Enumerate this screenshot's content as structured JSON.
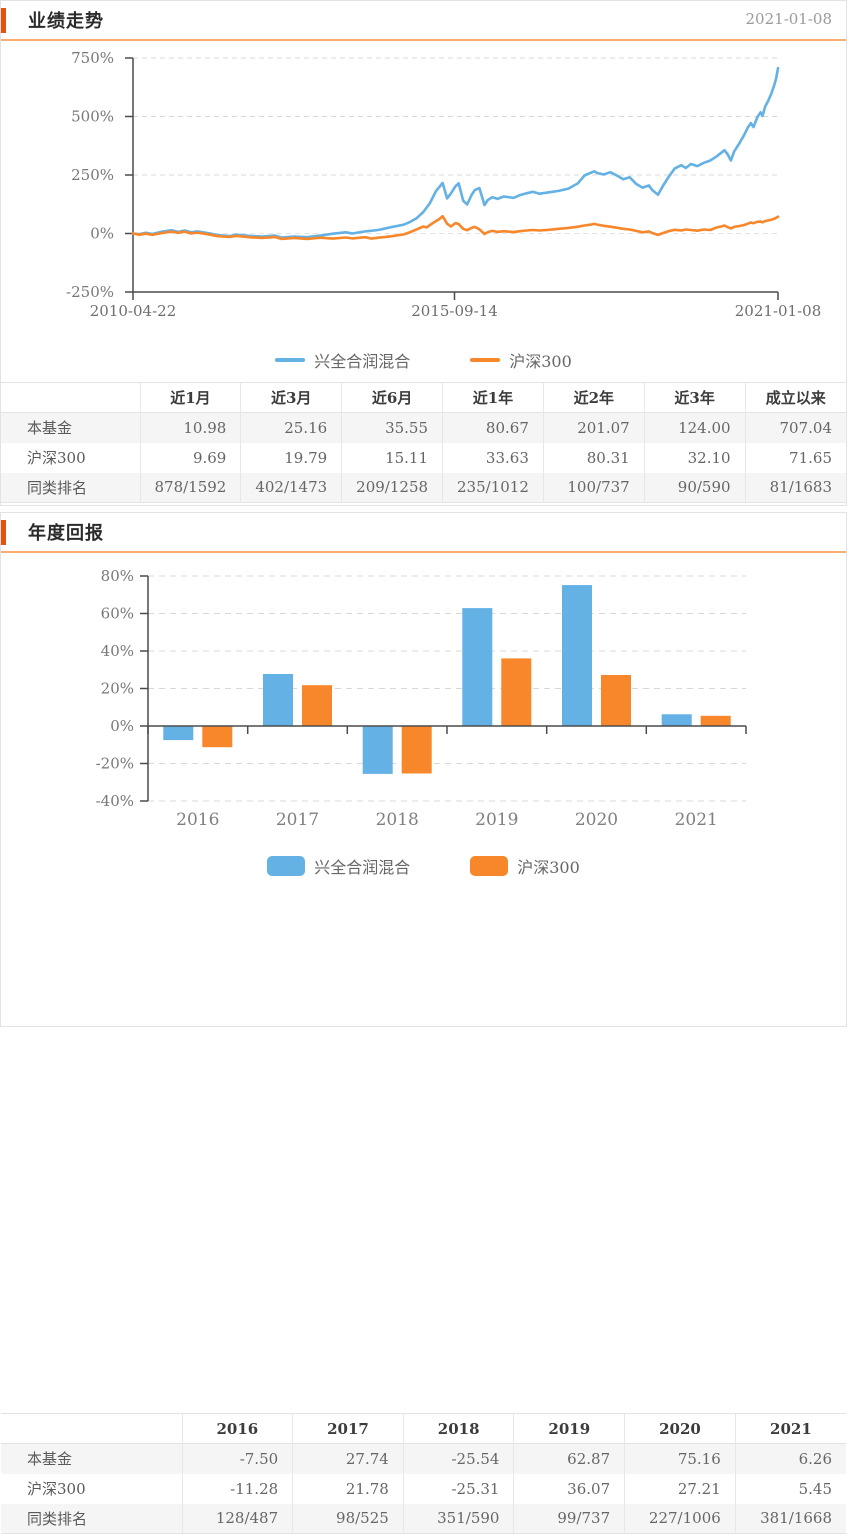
{
  "page": {
    "background": "#ffffff",
    "accent_color": "#e8500f",
    "divider_color": "#fcab6f",
    "fund_color": "#63b1e5",
    "benchmark_color": "#f8872b",
    "axis_color": "#4b4b4b",
    "grid_color": "#d8d8d8",
    "label_color": "#787878"
  },
  "performance_section": {
    "title": "业绩走势",
    "date": "2021-01-08",
    "legend": [
      {
        "name": "兴全合润混合",
        "color": "#63b1e5"
      },
      {
        "name": "沪深300",
        "color": "#f8872b"
      }
    ],
    "table": {
      "headers": [
        "",
        "近1月",
        "近3月",
        "近6月",
        "近1年",
        "近2年",
        "近3年",
        "成立以来"
      ],
      "rows": [
        [
          "本基金",
          "10.98",
          "25.16",
          "35.55",
          "80.67",
          "201.07",
          "124.00",
          "707.04"
        ],
        [
          "沪深300",
          "9.69",
          "19.79",
          "15.11",
          "33.63",
          "80.31",
          "32.10",
          "71.65"
        ],
        [
          "同类排名",
          "878/1592",
          "402/1473",
          "209/1258",
          "235/1012",
          "100/737",
          "90/590",
          "81/1683"
        ]
      ]
    }
  },
  "annual_section": {
    "title": "年度回报",
    "legend": [
      {
        "name": "兴全合润混合",
        "color": "#63b1e5"
      },
      {
        "name": "沪深300",
        "color": "#f8872b"
      }
    ],
    "table": {
      "headers": [
        "",
        "2016",
        "2017",
        "2018",
        "2019",
        "2020",
        "2021"
      ],
      "rows": [
        [
          "本基金",
          "-7.50",
          "27.74",
          "-25.54",
          "62.87",
          "75.16",
          "6.26"
        ],
        [
          "沪深300",
          "-11.28",
          "21.78",
          "-25.31",
          "36.07",
          "27.21",
          "5.45"
        ],
        [
          "同类排名",
          "128/487",
          "98/525",
          "351/590",
          "99/737",
          "227/1006",
          "381/1668"
        ]
      ]
    }
  },
  "chart_data": [
    {
      "type": "line",
      "title": "业绩走势",
      "ylim": [
        -250,
        750
      ],
      "y_ticks": [
        750,
        500,
        250,
        0,
        -250
      ],
      "y_tick_labels": [
        "750%",
        "500%",
        "250%",
        "0%",
        "-250%"
      ],
      "x_ticks": [
        {
          "label": "2010-04-22",
          "pos": 0
        },
        {
          "label": "2015-09-14",
          "pos": 0.4985
        },
        {
          "label": "2021-01-08",
          "pos": 1
        }
      ],
      "grid": "dashed",
      "legend_position": "bottom",
      "series": [
        {
          "name": "兴全合润混合",
          "color": "#63b1e5",
          "final_value": 707.04,
          "points": [
            [
              0,
              0
            ],
            [
              0.01,
              -3
            ],
            [
              0.02,
              3
            ],
            [
              0.03,
              -2
            ],
            [
              0.045,
              8
            ],
            [
              0.06,
              14
            ],
            [
              0.07,
              7
            ],
            [
              0.08,
              13
            ],
            [
              0.09,
              5
            ],
            [
              0.1,
              9
            ],
            [
              0.12,
              0
            ],
            [
              0.13,
              -7
            ],
            [
              0.15,
              -11
            ],
            [
              0.16,
              -5
            ],
            [
              0.18,
              -10
            ],
            [
              0.2,
              -13
            ],
            [
              0.22,
              -9
            ],
            [
              0.23,
              -17
            ],
            [
              0.25,
              -13
            ],
            [
              0.27,
              -16
            ],
            [
              0.29,
              -9
            ],
            [
              0.31,
              -1
            ],
            [
              0.33,
              5
            ],
            [
              0.34,
              0
            ],
            [
              0.36,
              9
            ],
            [
              0.38,
              15
            ],
            [
              0.4,
              27
            ],
            [
              0.42,
              38
            ],
            [
              0.43,
              50
            ],
            [
              0.44,
              66
            ],
            [
              0.45,
              92
            ],
            [
              0.46,
              128
            ],
            [
              0.47,
              182
            ],
            [
              0.48,
              216
            ],
            [
              0.487,
              150
            ],
            [
              0.493,
              172
            ],
            [
              0.5,
              202
            ],
            [
              0.505,
              214
            ],
            [
              0.512,
              140
            ],
            [
              0.518,
              124
            ],
            [
              0.525,
              165
            ],
            [
              0.53,
              186
            ],
            [
              0.537,
              194
            ],
            [
              0.545,
              122
            ],
            [
              0.55,
              143
            ],
            [
              0.557,
              155
            ],
            [
              0.565,
              148
            ],
            [
              0.575,
              158
            ],
            [
              0.59,
              152
            ],
            [
              0.6,
              164
            ],
            [
              0.61,
              172
            ],
            [
              0.62,
              178
            ],
            [
              0.63,
              170
            ],
            [
              0.645,
              176
            ],
            [
              0.66,
              182
            ],
            [
              0.675,
              192
            ],
            [
              0.69,
              215
            ],
            [
              0.7,
              248
            ],
            [
              0.71,
              260
            ],
            [
              0.715,
              266
            ],
            [
              0.72,
              258
            ],
            [
              0.73,
              252
            ],
            [
              0.74,
              262
            ],
            [
              0.75,
              248
            ],
            [
              0.76,
              232
            ],
            [
              0.77,
              240
            ],
            [
              0.78,
              212
            ],
            [
              0.79,
              196
            ],
            [
              0.8,
              205
            ],
            [
              0.805,
              186
            ],
            [
              0.814,
              166
            ],
            [
              0.822,
              205
            ],
            [
              0.83,
              240
            ],
            [
              0.84,
              278
            ],
            [
              0.85,
              292
            ],
            [
              0.857,
              280
            ],
            [
              0.865,
              297
            ],
            [
              0.875,
              288
            ],
            [
              0.885,
              302
            ],
            [
              0.895,
              312
            ],
            [
              0.905,
              330
            ],
            [
              0.912,
              345
            ],
            [
              0.917,
              356
            ],
            [
              0.922,
              338
            ],
            [
              0.927,
              312
            ],
            [
              0.932,
              350
            ],
            [
              0.94,
              385
            ],
            [
              0.947,
              418
            ],
            [
              0.953,
              452
            ],
            [
              0.958,
              472
            ],
            [
              0.962,
              455
            ],
            [
              0.968,
              498
            ],
            [
              0.973,
              518
            ],
            [
              0.976,
              502
            ],
            [
              0.98,
              542
            ],
            [
              0.985,
              568
            ],
            [
              0.99,
              600
            ],
            [
              0.994,
              632
            ],
            [
              0.997,
              662
            ],
            [
              1,
              707
            ]
          ]
        },
        {
          "name": "沪深300",
          "color": "#f8872b",
          "final_value": 71.65,
          "points": [
            [
              0,
              0
            ],
            [
              0.01,
              -5
            ],
            [
              0.02,
              -1
            ],
            [
              0.03,
              -6
            ],
            [
              0.045,
              2
            ],
            [
              0.06,
              8
            ],
            [
              0.07,
              3
            ],
            [
              0.08,
              8
            ],
            [
              0.09,
              0
            ],
            [
              0.1,
              4
            ],
            [
              0.12,
              -5
            ],
            [
              0.13,
              -11
            ],
            [
              0.15,
              -15
            ],
            [
              0.16,
              -10
            ],
            [
              0.18,
              -16
            ],
            [
              0.2,
              -19
            ],
            [
              0.22,
              -15
            ],
            [
              0.23,
              -23
            ],
            [
              0.25,
              -19
            ],
            [
              0.27,
              -23
            ],
            [
              0.29,
              -18
            ],
            [
              0.31,
              -22
            ],
            [
              0.33,
              -17
            ],
            [
              0.34,
              -21
            ],
            [
              0.36,
              -16
            ],
            [
              0.37,
              -22
            ],
            [
              0.38,
              -18
            ],
            [
              0.4,
              -12
            ],
            [
              0.42,
              -4
            ],
            [
              0.43,
              6
            ],
            [
              0.44,
              18
            ],
            [
              0.45,
              30
            ],
            [
              0.455,
              26
            ],
            [
              0.465,
              45
            ],
            [
              0.475,
              62
            ],
            [
              0.48,
              74
            ],
            [
              0.487,
              42
            ],
            [
              0.493,
              30
            ],
            [
              0.5,
              45
            ],
            [
              0.505,
              40
            ],
            [
              0.512,
              20
            ],
            [
              0.518,
              14
            ],
            [
              0.525,
              24
            ],
            [
              0.53,
              28
            ],
            [
              0.537,
              18
            ],
            [
              0.545,
              -2
            ],
            [
              0.55,
              6
            ],
            [
              0.557,
              11
            ],
            [
              0.565,
              7
            ],
            [
              0.575,
              10
            ],
            [
              0.59,
              6
            ],
            [
              0.6,
              10
            ],
            [
              0.61,
              13
            ],
            [
              0.62,
              15
            ],
            [
              0.63,
              13
            ],
            [
              0.645,
              16
            ],
            [
              0.66,
              20
            ],
            [
              0.675,
              24
            ],
            [
              0.69,
              29
            ],
            [
              0.7,
              34
            ],
            [
              0.71,
              38
            ],
            [
              0.715,
              41
            ],
            [
              0.72,
              38
            ],
            [
              0.73,
              33
            ],
            [
              0.74,
              29
            ],
            [
              0.75,
              25
            ],
            [
              0.76,
              20
            ],
            [
              0.77,
              17
            ],
            [
              0.78,
              11
            ],
            [
              0.79,
              5
            ],
            [
              0.8,
              9
            ],
            [
              0.805,
              2
            ],
            [
              0.814,
              -6
            ],
            [
              0.822,
              2
            ],
            [
              0.83,
              10
            ],
            [
              0.84,
              16
            ],
            [
              0.85,
              13
            ],
            [
              0.857,
              17
            ],
            [
              0.865,
              15
            ],
            [
              0.875,
              12
            ],
            [
              0.885,
              17
            ],
            [
              0.895,
              15
            ],
            [
              0.905,
              26
            ],
            [
              0.912,
              30
            ],
            [
              0.917,
              34
            ],
            [
              0.922,
              27
            ],
            [
              0.927,
              22
            ],
            [
              0.932,
              28
            ],
            [
              0.94,
              32
            ],
            [
              0.947,
              36
            ],
            [
              0.953,
              42
            ],
            [
              0.958,
              47
            ],
            [
              0.962,
              44
            ],
            [
              0.968,
              50
            ],
            [
              0.973,
              51
            ],
            [
              0.976,
              48
            ],
            [
              0.98,
              53
            ],
            [
              0.985,
              56
            ],
            [
              0.99,
              59
            ],
            [
              0.994,
              63
            ],
            [
              0.997,
              67
            ],
            [
              1,
              71.65
            ]
          ]
        }
      ]
    },
    {
      "type": "bar",
      "title": "年度回报",
      "categories": [
        "2016",
        "2017",
        "2018",
        "2019",
        "2020",
        "2021"
      ],
      "ylim": [
        -40,
        80
      ],
      "y_ticks": [
        80,
        60,
        40,
        20,
        0,
        -20,
        -40
      ],
      "y_tick_labels": [
        "80%",
        "60%",
        "40%",
        "20%",
        "0%",
        "-20%",
        "-40%"
      ],
      "grid": "dashed",
      "legend_position": "bottom",
      "series": [
        {
          "name": "兴全合润混合",
          "color": "#63b1e5",
          "values": [
            -7.5,
            27.74,
            -25.54,
            62.87,
            75.16,
            6.26
          ]
        },
        {
          "name": "沪深300",
          "color": "#f8872b",
          "values": [
            -11.28,
            21.78,
            -25.31,
            36.07,
            27.21,
            5.45
          ]
        }
      ]
    }
  ]
}
